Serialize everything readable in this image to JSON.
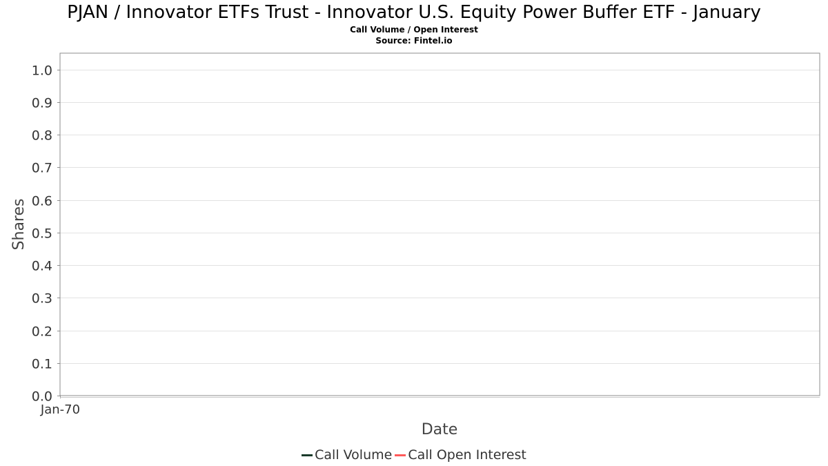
{
  "chart_data": {
    "type": "line",
    "title": "PJAN / Innovator ETFs Trust - Innovator U.S. Equity Power Buffer ETF - January",
    "subtitle": "Call Volume / Open Interest",
    "source": "Source: Fintel.io",
    "xlabel": "Date",
    "ylabel": "Shares",
    "x_tick_labels": [
      "Jan-70"
    ],
    "y_tick_labels": [
      "0.0",
      "0.1",
      "0.2",
      "0.3",
      "0.4",
      "0.5",
      "0.6",
      "0.7",
      "0.8",
      "0.9",
      "1.0"
    ],
    "ylim": [
      0,
      1.05
    ],
    "grid": true,
    "legend_position": "bottom",
    "series": [
      {
        "name": "Call Volume",
        "color": "#1a3a2a",
        "values": []
      },
      {
        "name": "Call Open Interest",
        "color": "#ff5a5a",
        "values": []
      }
    ]
  }
}
